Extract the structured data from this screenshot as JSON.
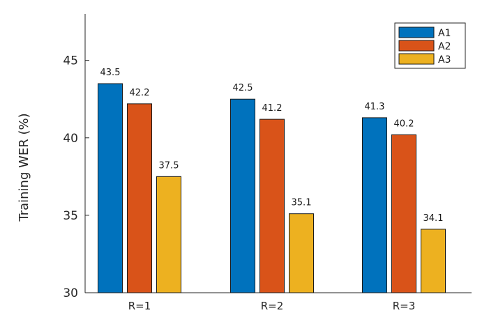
{
  "chart_data": {
    "type": "bar",
    "title": "",
    "xlabel": "",
    "ylabel": "Training WER (%)",
    "categories": [
      "R=1",
      "R=2",
      "R=3"
    ],
    "series": [
      {
        "name": "A1",
        "values": [
          43.5,
          42.5,
          41.3
        ],
        "color": "#0072BD"
      },
      {
        "name": "A2",
        "values": [
          42.2,
          41.2,
          40.2
        ],
        "color": "#D95319"
      },
      {
        "name": "A3",
        "values": [
          37.5,
          35.1,
          34.1
        ],
        "color": "#EDB120"
      }
    ],
    "ylim": [
      30,
      48
    ],
    "yticks": [
      30,
      35,
      40,
      45
    ],
    "grid": false,
    "legend_position": "top-right"
  }
}
